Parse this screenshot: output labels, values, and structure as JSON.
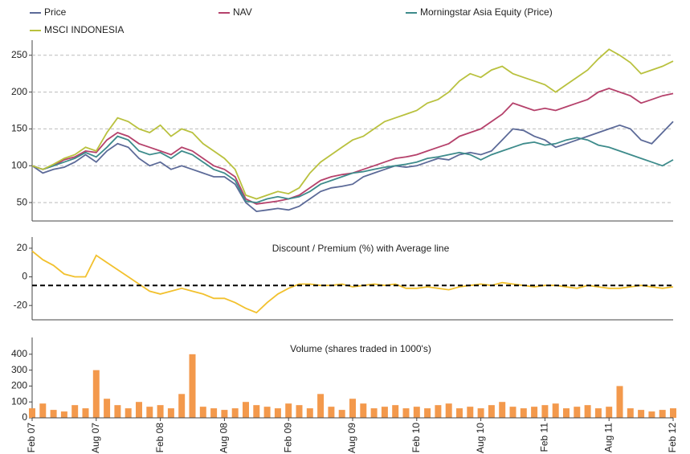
{
  "chart_data": [
    {
      "type": "line",
      "grid": true,
      "ylim": [
        25,
        265
      ],
      "yticks": [
        50,
        100,
        150,
        200,
        250
      ],
      "series": [
        {
          "name": "Price",
          "color": "#5c6a98",
          "values": [
            100,
            90,
            95,
            98,
            105,
            115,
            105,
            120,
            130,
            125,
            110,
            100,
            105,
            95,
            100,
            95,
            90,
            85,
            85,
            75,
            50,
            38,
            40,
            42,
            40,
            45,
            55,
            65,
            70,
            72,
            75,
            85,
            90,
            95,
            100,
            98,
            100,
            105,
            110,
            108,
            115,
            118,
            115,
            120,
            135,
            150,
            148,
            140,
            135,
            125,
            130,
            135,
            140,
            145,
            150,
            155,
            150,
            135,
            130,
            145,
            160
          ]
        },
        {
          "name": "NAV",
          "color": "#b5416b",
          "values": [
            100,
            95,
            100,
            108,
            112,
            120,
            118,
            135,
            145,
            140,
            130,
            125,
            120,
            115,
            125,
            120,
            110,
            100,
            95,
            85,
            55,
            48,
            50,
            52,
            55,
            60,
            70,
            80,
            85,
            88,
            90,
            95,
            100,
            105,
            110,
            112,
            115,
            120,
            125,
            130,
            140,
            145,
            150,
            160,
            170,
            185,
            180,
            175,
            178,
            175,
            180,
            185,
            190,
            200,
            205,
            200,
            195,
            185,
            190,
            195,
            198
          ]
        },
        {
          "name": "Morningstar Asia Equity (Price)",
          "color": "#3d8b8b",
          "values": [
            100,
            95,
            100,
            105,
            110,
            118,
            112,
            125,
            140,
            135,
            120,
            115,
            118,
            110,
            120,
            115,
            105,
            95,
            90,
            80,
            52,
            50,
            55,
            58,
            55,
            58,
            65,
            75,
            80,
            85,
            90,
            92,
            95,
            98,
            100,
            102,
            105,
            110,
            112,
            115,
            118,
            115,
            108,
            115,
            120,
            125,
            130,
            132,
            128,
            130,
            135,
            138,
            135,
            128,
            125,
            120,
            115,
            110,
            105,
            100,
            108
          ]
        },
        {
          "name": "MSCI INDONESIA",
          "color": "#b9c13e",
          "values": [
            100,
            95,
            102,
            110,
            115,
            125,
            120,
            145,
            165,
            160,
            150,
            145,
            155,
            140,
            150,
            145,
            130,
            120,
            110,
            95,
            60,
            55,
            60,
            65,
            62,
            70,
            90,
            105,
            115,
            125,
            135,
            140,
            150,
            160,
            165,
            170,
            175,
            185,
            190,
            200,
            215,
            225,
            220,
            230,
            235,
            225,
            220,
            215,
            210,
            200,
            210,
            220,
            230,
            245,
            258,
            250,
            240,
            225,
            230,
            235,
            242
          ]
        }
      ]
    },
    {
      "type": "line",
      "title": "Discount / Premium (%) with Average line",
      "grid": false,
      "ylim": [
        -30,
        25
      ],
      "yticks": [
        -20,
        0,
        20
      ],
      "average": -6,
      "average_color": "#000000",
      "series": [
        {
          "color": "#f2c12e",
          "values": [
            18,
            12,
            8,
            2,
            0,
            0,
            15,
            10,
            5,
            0,
            -5,
            -10,
            -12,
            -10,
            -8,
            -10,
            -12,
            -15,
            -15,
            -18,
            -22,
            -25,
            -18,
            -12,
            -8,
            -5,
            -5,
            -6,
            -6,
            -5,
            -7,
            -6,
            -5,
            -6,
            -5,
            -8,
            -8,
            -7,
            -8,
            -9,
            -7,
            -6,
            -5,
            -6,
            -4,
            -5,
            -6,
            -7,
            -6,
            -6,
            -7,
            -8,
            -6,
            -7,
            -8,
            -8,
            -7,
            -6,
            -7,
            -8,
            -7
          ]
        }
      ]
    },
    {
      "type": "bar",
      "title": "Volume  (shares traded in 1000's)",
      "grid": false,
      "ylim": [
        0,
        480
      ],
      "yticks": [
        0,
        100,
        200,
        300,
        400
      ],
      "color": "#f3994c",
      "categories": [
        "Feb 07",
        null,
        null,
        null,
        null,
        null,
        "Aug 07",
        null,
        null,
        null,
        null,
        null,
        "Feb 08",
        null,
        null,
        null,
        null,
        null,
        "Aug 08",
        null,
        null,
        null,
        null,
        null,
        "Feb 09",
        null,
        null,
        null,
        null,
        null,
        "Aug 09",
        null,
        null,
        null,
        null,
        null,
        "Feb 10",
        null,
        null,
        null,
        null,
        null,
        "Aug 10",
        null,
        null,
        null,
        null,
        null,
        "Feb 11",
        null,
        null,
        null,
        null,
        null,
        "Aug 11",
        null,
        null,
        null,
        null,
        null,
        "Feb 12"
      ],
      "values": [
        60,
        90,
        50,
        40,
        80,
        60,
        300,
        120,
        80,
        60,
        100,
        70,
        80,
        60,
        150,
        400,
        70,
        60,
        50,
        60,
        100,
        80,
        70,
        60,
        90,
        80,
        60,
        150,
        70,
        50,
        120,
        90,
        60,
        70,
        80,
        60,
        70,
        60,
        80,
        90,
        60,
        70,
        60,
        80,
        100,
        70,
        60,
        70,
        80,
        90,
        60,
        70,
        80,
        60,
        70,
        200,
        60,
        50,
        40,
        50,
        60
      ]
    }
  ]
}
